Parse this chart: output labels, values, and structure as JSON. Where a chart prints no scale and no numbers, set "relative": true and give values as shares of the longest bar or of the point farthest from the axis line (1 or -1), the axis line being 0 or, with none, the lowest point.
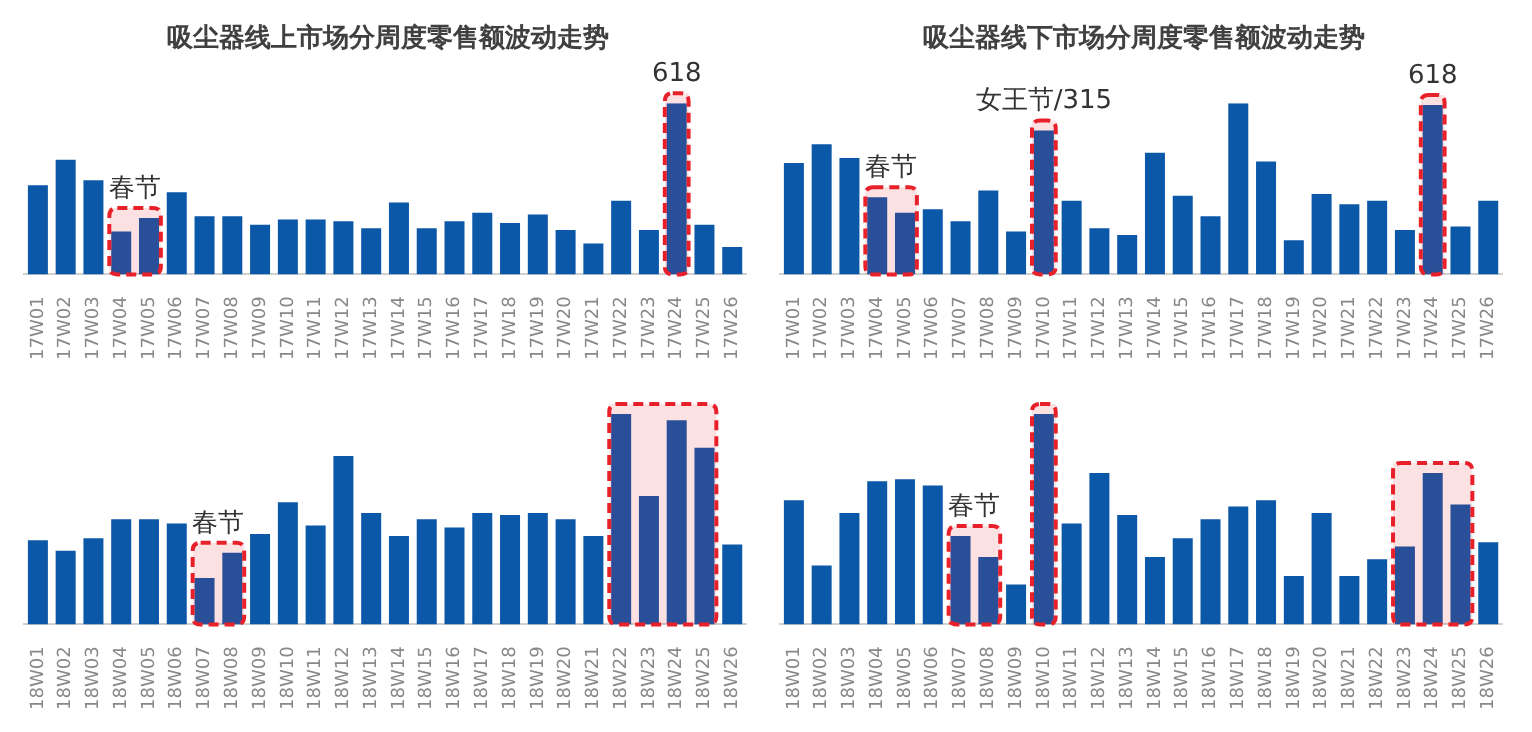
{
  "chart_data": [
    {
      "type": "bar",
      "title": "吸尘器线上市场分周度零售额波动走势",
      "relative": true,
      "grid": false,
      "legend": false,
      "categories": [
        "17W01",
        "17W02",
        "17W03",
        "17W04",
        "17W05",
        "17W06",
        "17W07",
        "17W08",
        "17W09",
        "17W10",
        "17W11",
        "17W12",
        "17W13",
        "17W14",
        "17W15",
        "17W16",
        "17W17",
        "17W18",
        "17W19",
        "17W20",
        "17W21",
        "17W22",
        "17W23",
        "17W24",
        "17W25",
        "17W26"
      ],
      "series": [
        {
          "color": "#0b57a8",
          "values": [
            0.52,
            0.67,
            0.55,
            0.25,
            0.33,
            0.48,
            0.34,
            0.34,
            0.29,
            0.32,
            0.32,
            0.31,
            0.27,
            0.42,
            0.27,
            0.31,
            0.36,
            0.3,
            0.35,
            0.26,
            0.18,
            0.43,
            0.26,
            1,
            0.29,
            0.16
          ]
        }
      ],
      "bands": [
        {
          "axis": "x",
          "from": "17W04",
          "to": "17W05",
          "label": "春节",
          "color": "#e8202a"
        },
        {
          "axis": "x",
          "from": "17W24",
          "to": "17W24",
          "label": "618",
          "color": "#e8202a"
        }
      ]
    },
    {
      "type": "bar",
      "title": "吸尘器线下市场分周度零售额波动走势",
      "relative": true,
      "grid": false,
      "legend": false,
      "categories": [
        "17W01",
        "17W02",
        "17W03",
        "17W04",
        "17W05",
        "17W06",
        "17W07",
        "17W08",
        "17W09",
        "17W10",
        "17W11",
        "17W12",
        "17W13",
        "17W14",
        "17W15",
        "17W16",
        "17W17",
        "17W18",
        "17W19",
        "17W20",
        "17W21",
        "17W22",
        "17W23",
        "17W24",
        "17W25",
        "17W26"
      ],
      "series": [
        {
          "color": "#0b57a8",
          "values": [
            0.65,
            0.76,
            0.68,
            0.45,
            0.36,
            0.38,
            0.31,
            0.49,
            0.25,
            0.84,
            0.43,
            0.27,
            0.23,
            0.71,
            0.46,
            0.34,
            1,
            0.66,
            0.2,
            0.47,
            0.41,
            0.43,
            0.26,
            0.99,
            0.28,
            0.43
          ]
        }
      ],
      "bands": [
        {
          "axis": "x",
          "from": "17W04",
          "to": "17W05",
          "label": "春节",
          "color": "#e8202a"
        },
        {
          "axis": "x",
          "from": "17W10",
          "to": "17W10",
          "label": "女王节/315",
          "color": "#e8202a"
        },
        {
          "axis": "x",
          "from": "17W24",
          "to": "17W24",
          "label": "618",
          "color": "#e8202a"
        }
      ]
    },
    {
      "type": "bar",
      "relative": true,
      "grid": false,
      "legend": false,
      "categories": [
        "18W01",
        "18W02",
        "18W03",
        "18W04",
        "18W05",
        "18W06",
        "18W07",
        "18W08",
        "18W09",
        "18W10",
        "18W11",
        "18W12",
        "18W13",
        "18W14",
        "18W15",
        "18W16",
        "18W17",
        "18W18",
        "18W19",
        "18W20",
        "18W21",
        "18W22",
        "18W23",
        "18W24",
        "18W25",
        "18W26"
      ],
      "series": [
        {
          "color": "#0b57a8",
          "values": [
            0.4,
            0.35,
            0.41,
            0.5,
            0.5,
            0.48,
            0.22,
            0.34,
            0.43,
            0.58,
            0.47,
            0.8,
            0.53,
            0.42,
            0.5,
            0.46,
            0.53,
            0.52,
            0.53,
            0.5,
            0.42,
            1,
            0.61,
            0.97,
            0.84,
            0.38
          ]
        }
      ],
      "bands": [
        {
          "axis": "x",
          "from": "18W07",
          "to": "18W08",
          "label": "春节",
          "color": "#e8202a"
        },
        {
          "axis": "x",
          "from": "18W22",
          "to": "18W25",
          "color": "#e8202a"
        }
      ]
    },
    {
      "type": "bar",
      "relative": true,
      "grid": false,
      "legend": false,
      "categories": [
        "18W01",
        "18W02",
        "18W03",
        "18W04",
        "18W05",
        "18W06",
        "18W07",
        "18W08",
        "18W09",
        "18W10",
        "18W11",
        "18W12",
        "18W13",
        "18W14",
        "18W15",
        "18W16",
        "18W17",
        "18W18",
        "18W19",
        "18W20",
        "18W21",
        "18W22",
        "18W23",
        "18W24",
        "18W25",
        "18W26"
      ],
      "series": [
        {
          "color": "#0b57a8",
          "values": [
            0.59,
            0.28,
            0.53,
            0.68,
            0.69,
            0.66,
            0.42,
            0.32,
            0.19,
            1,
            0.48,
            0.72,
            0.52,
            0.32,
            0.41,
            0.5,
            0.56,
            0.59,
            0.23,
            0.53,
            0.23,
            0.31,
            0.37,
            0.72,
            0.57,
            0.39
          ]
        }
      ],
      "bands": [
        {
          "axis": "x",
          "from": "18W07",
          "to": "18W08",
          "label": "春节",
          "color": "#e8202a"
        },
        {
          "axis": "x",
          "from": "18W10",
          "to": "18W10",
          "color": "#e8202a"
        },
        {
          "axis": "x",
          "from": "18W23",
          "to": "18W25",
          "color": "#e8202a"
        }
      ]
    }
  ]
}
